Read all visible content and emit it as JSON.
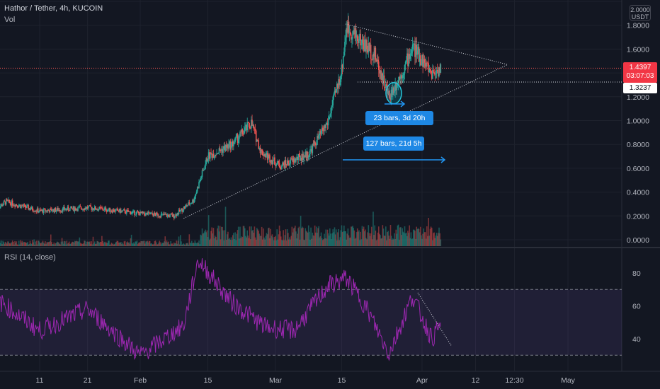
{
  "header": {
    "symbol_line": "Hathor / Tether, 4h, KUCOIN",
    "volume_label": "Vol",
    "rsi_label": "RSI (14, close)",
    "currency_top": "2.0000",
    "currency": "USDT"
  },
  "badges": {
    "last_price": "1.4397",
    "countdown": "03:07:03",
    "line_price": "1.3237"
  },
  "annotations": {
    "short_range": "23 bars, 3d 20h",
    "long_range": "127 bars, 21d 5h"
  },
  "colors": {
    "background": "#131722",
    "up": "#26a69a",
    "down": "#ef5350",
    "rsi_line": "#9c27b0",
    "rsi_band": "#7e57c2",
    "measure": "#2196f3"
  },
  "chart_data": [
    {
      "type": "candlestick",
      "title": "Hathor / Tether, 4h, KUCOIN",
      "y_axis_ticks": [
        "2.0000",
        "1.8000",
        "1.6000",
        "1.4000",
        "1.2000",
        "1.0000",
        "0.8000",
        "0.6000",
        "0.4000",
        "0.2000",
        "0.0000"
      ],
      "x_axis_ticks": [
        "11",
        "21",
        "Feb",
        "15",
        "Mar",
        "15",
        "Apr",
        "12",
        "12:30",
        "May"
      ],
      "ylim": [
        0,
        2.0
      ],
      "approx_close_path": [
        {
          "x": "Jan 2",
          "y": 0.26
        },
        {
          "x": "Jan 4",
          "y": 0.32
        },
        {
          "x": "Jan 11",
          "y": 0.24
        },
        {
          "x": "Jan 21",
          "y": 0.27
        },
        {
          "x": "Jan 28",
          "y": 0.24
        },
        {
          "x": "Feb 1",
          "y": 0.22
        },
        {
          "x": "Feb 8",
          "y": 0.2
        },
        {
          "x": "Feb 12",
          "y": 0.33
        },
        {
          "x": "Feb 15",
          "y": 0.7
        },
        {
          "x": "Feb 20",
          "y": 0.8
        },
        {
          "x": "Feb 24",
          "y": 0.98
        },
        {
          "x": "Feb 26",
          "y": 0.74
        },
        {
          "x": "Mar 2",
          "y": 0.62
        },
        {
          "x": "Mar 8",
          "y": 0.72
        },
        {
          "x": "Mar 12",
          "y": 0.98
        },
        {
          "x": "Mar 15",
          "y": 1.42
        },
        {
          "x": "Mar 16",
          "y": 1.79
        },
        {
          "x": "Mar 22",
          "y": 1.55
        },
        {
          "x": "Mar 25",
          "y": 1.2
        },
        {
          "x": "Mar 28",
          "y": 1.42
        },
        {
          "x": "Mar 30",
          "y": 1.62
        },
        {
          "x": "Apr 3",
          "y": 1.4
        },
        {
          "x": "Apr 5",
          "y": 1.44
        }
      ],
      "last_price": 1.4397,
      "horizontal_line": 1.3237
    },
    {
      "type": "line",
      "title": "RSI (14, close)",
      "y_axis_ticks": [
        "80",
        "60",
        "40"
      ],
      "bands": [
        30,
        70
      ],
      "ylim": [
        25,
        90
      ],
      "approx_path": [
        {
          "x": "Jan 2",
          "y": 64
        },
        {
          "x": "Jan 11",
          "y": 45
        },
        {
          "x": "Jan 21",
          "y": 58
        },
        {
          "x": "Feb 1",
          "y": 30
        },
        {
          "x": "Feb 10",
          "y": 48
        },
        {
          "x": "Feb 13",
          "y": 88
        },
        {
          "x": "Feb 20",
          "y": 62
        },
        {
          "x": "Feb 27",
          "y": 47
        },
        {
          "x": "Mar 5",
          "y": 45
        },
        {
          "x": "Mar 12",
          "y": 72
        },
        {
          "x": "Mar 16",
          "y": 77
        },
        {
          "x": "Mar 20",
          "y": 60
        },
        {
          "x": "Mar 25",
          "y": 31
        },
        {
          "x": "Mar 30",
          "y": 66
        },
        {
          "x": "Apr 3",
          "y": 40
        },
        {
          "x": "Apr 5",
          "y": 49
        }
      ]
    }
  ]
}
